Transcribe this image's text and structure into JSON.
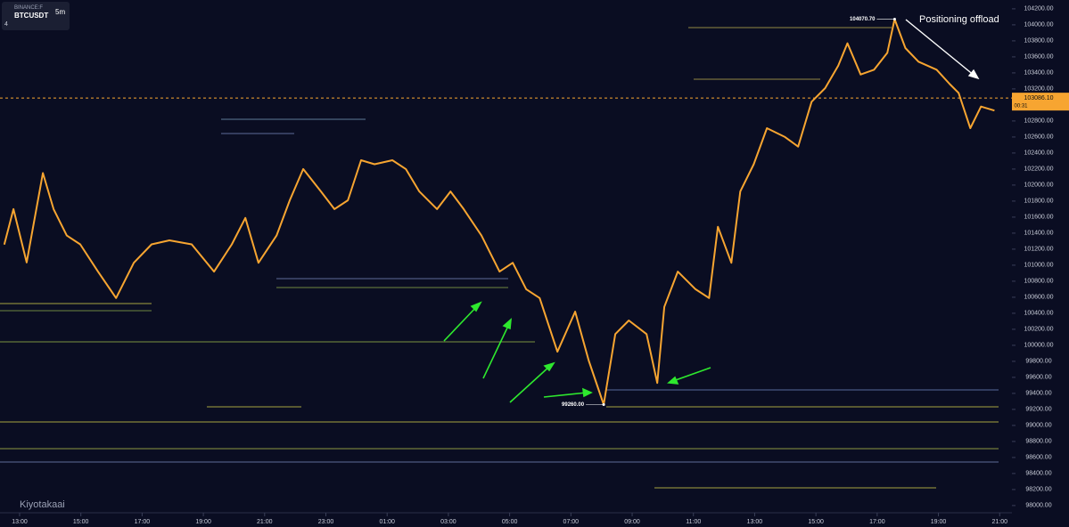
{
  "header": {
    "exchange": "BINANCE:F",
    "symbol": "BTCUSDT",
    "interval": "5m",
    "indicators": "4"
  },
  "chart_data": {
    "type": "line",
    "x": [
      -0.5,
      -0.2,
      0.23,
      0.76,
      1.11,
      1.54,
      1.98,
      2.56,
      3.15,
      3.73,
      4.31,
      4.89,
      5.62,
      6.35,
      6.93,
      7.37,
      7.8,
      8.39,
      8.82,
      9.26,
      9.84,
      10.28,
      10.72,
      11.15,
      11.59,
      12.17,
      12.61,
      13.05,
      13.63,
      14.07,
      14.5,
      15.08,
      15.67,
      16.1,
      16.54,
      16.98,
      17.56,
      18.14,
      18.58,
      19.07,
      19.45,
      19.89,
      20.47,
      20.82,
      21.05,
      21.49,
      22.07,
      22.51,
      22.8,
      23.24,
      23.53,
      23.97,
      24.4,
      24.99,
      25.42,
      25.86,
      26.3,
      26.73,
      27.03,
      27.46,
      27.9,
      28.33,
      28.57,
      28.92,
      29.35,
      29.94,
      30.37,
      30.66,
      31.04,
      31.39,
      31.83
    ],
    "series": [
      {
        "name": "BTCUSDT",
        "color": "#f7a531",
        "values": [
          101257,
          101700,
          101034,
          102150,
          101700,
          101370,
          101260,
          100920,
          100590,
          101030,
          101260,
          101310,
          101260,
          100920,
          101260,
          101590,
          101030,
          101370,
          101810,
          102200,
          101920,
          101700,
          101810,
          102310,
          102260,
          102310,
          102200,
          101920,
          101700,
          101920,
          101700,
          101370,
          100920,
          101030,
          100700,
          100590,
          99920,
          100420,
          99810,
          99260,
          100140,
          100310,
          100140,
          99530,
          100480,
          100920,
          100700,
          100590,
          101480,
          101030,
          101920,
          102260,
          102710,
          102600,
          102480,
          103040,
          103210,
          103490,
          103770,
          103380,
          103440,
          103650,
          104070.7,
          103710,
          103540,
          103440,
          103260,
          103150,
          102710,
          102980,
          102930
        ]
      }
    ],
    "xlim": [
      -0.64,
      32.4
    ],
    "xticks": [
      {
        "value": 0,
        "label": "13:00"
      },
      {
        "value": 2,
        "label": "15:00"
      },
      {
        "value": 4,
        "label": "17:00"
      },
      {
        "value": 6,
        "label": "19:00"
      },
      {
        "value": 8,
        "label": "21:00"
      },
      {
        "value": 10,
        "label": "23:00"
      },
      {
        "value": 12,
        "label": "01:00"
      },
      {
        "value": 14,
        "label": "03:00"
      },
      {
        "value": 16,
        "label": "05:00"
      },
      {
        "value": 18,
        "label": "07:00"
      },
      {
        "value": 20,
        "label": "09:00"
      },
      {
        "value": 22,
        "label": "11:00"
      },
      {
        "value": 24,
        "label": "13:00"
      },
      {
        "value": 26,
        "label": "15:00"
      },
      {
        "value": 28,
        "label": "17:00"
      },
      {
        "value": 30,
        "label": "19:00"
      },
      {
        "value": 32,
        "label": "21:00"
      }
    ],
    "ylim": [
      97910,
      104310
    ],
    "yticks": [
      {
        "value": 98000,
        "label": "98000.00"
      },
      {
        "value": 98200,
        "label": "98200.00"
      },
      {
        "value": 98400,
        "label": "98400.00"
      },
      {
        "value": 98600,
        "label": "98600.00"
      },
      {
        "value": 98800,
        "label": "98800.00"
      },
      {
        "value": 99000,
        "label": "99000.00"
      },
      {
        "value": 99200,
        "label": "99200.00"
      },
      {
        "value": 99400,
        "label": "99400.00"
      },
      {
        "value": 99600,
        "label": "99600.00"
      },
      {
        "value": 99800,
        "label": "99800.00"
      },
      {
        "value": 100000,
        "label": "100000.00"
      },
      {
        "value": 100200,
        "label": "100200.00"
      },
      {
        "value": 100400,
        "label": "100400.00"
      },
      {
        "value": 100600,
        "label": "100600.00"
      },
      {
        "value": 100800,
        "label": "100800.00"
      },
      {
        "value": 101000,
        "label": "101000.00"
      },
      {
        "value": 101200,
        "label": "101200.00"
      },
      {
        "value": 101400,
        "label": "101400.00"
      },
      {
        "value": 101600,
        "label": "101600.00"
      },
      {
        "value": 101800,
        "label": "101800.00"
      },
      {
        "value": 102000,
        "label": "102000.00"
      },
      {
        "value": 102200,
        "label": "102200.00"
      },
      {
        "value": 102400,
        "label": "102400.00"
      },
      {
        "value": 102600,
        "label": "102600.00"
      },
      {
        "value": 102800,
        "label": "102800.00"
      },
      {
        "value": 103000,
        "label": "103000.00"
      },
      {
        "value": 103200,
        "label": "103200.00"
      },
      {
        "value": 103400,
        "label": "103400.00"
      },
      {
        "value": 103600,
        "label": "103600.00"
      },
      {
        "value": 103800,
        "label": "103800.00"
      },
      {
        "value": 104000,
        "label": "104000.00"
      },
      {
        "value": 104200,
        "label": "104200.00"
      }
    ],
    "last_price": {
      "value": 103086.1,
      "label": "103086.10",
      "countdown": "00:31"
    },
    "annotations": [
      {
        "label": "104070.70",
        "x": 28.57,
        "y": 104070.7
      },
      {
        "label": "99260.00",
        "x": 19.07,
        "y": 99260
      }
    ],
    "note": "Positioning offload",
    "watermark": "Kiyotakaai"
  }
}
